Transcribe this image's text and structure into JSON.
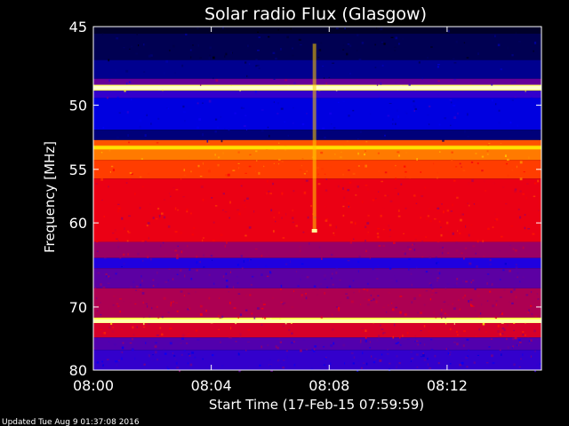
{
  "chart_data": {
    "type": "heatmap",
    "title": "Solar radio Flux (Glasgow)",
    "xlabel": "Start Time (17-Feb-15 07:59:59)",
    "ylabel": "Frequency [MHz]",
    "x_ticks": [
      "08:00",
      "08:04",
      "08:08",
      "08:12"
    ],
    "x_tick_minutes": [
      0,
      4,
      8,
      12
    ],
    "xlim_minutes": [
      0,
      15.2
    ],
    "y_ticks": [
      45,
      50,
      55,
      60,
      70,
      80
    ],
    "ylim": [
      45,
      80
    ],
    "y_scale": "reciprocal",
    "colormap": [
      "#000000",
      "#0000ff",
      "#ff0000",
      "#ffff00",
      "#ffffff"
    ],
    "bands": [
      {
        "from": 45.0,
        "to": 45.4,
        "level": 0.04
      },
      {
        "from": 45.4,
        "to": 47.0,
        "level": 0.08
      },
      {
        "from": 47.0,
        "to": 48.2,
        "level": 0.14
      },
      {
        "from": 48.2,
        "to": 48.6,
        "level": 0.35
      },
      {
        "from": 48.6,
        "to": 49.0,
        "level": 0.85
      },
      {
        "from": 49.0,
        "to": 49.5,
        "level": 0.3
      },
      {
        "from": 49.5,
        "to": 51.8,
        "level": 0.22
      },
      {
        "from": 51.8,
        "to": 52.6,
        "level": 0.12
      },
      {
        "from": 52.6,
        "to": 53.0,
        "level": 0.58
      },
      {
        "from": 53.0,
        "to": 54.2,
        "level": 0.62
      },
      {
        "from": 54.2,
        "to": 55.8,
        "level": 0.56
      },
      {
        "from": 55.8,
        "to": 62.0,
        "level": 0.48
      },
      {
        "from": 62.0,
        "to": 63.8,
        "level": 0.4
      },
      {
        "from": 63.8,
        "to": 65.0,
        "level": 0.28
      },
      {
        "from": 65.0,
        "to": 67.5,
        "level": 0.34
      },
      {
        "from": 67.5,
        "to": 71.5,
        "level": 0.42
      },
      {
        "from": 71.5,
        "to": 72.3,
        "level": 0.82
      },
      {
        "from": 72.3,
        "to": 74.5,
        "level": 0.46
      },
      {
        "from": 74.5,
        "to": 76.5,
        "level": 0.33
      },
      {
        "from": 76.5,
        "to": 80.0,
        "level": 0.3
      }
    ],
    "bright_lines": [
      {
        "freq": 48.8,
        "level": 0.95
      },
      {
        "freq": 53.2,
        "level": 0.72
      },
      {
        "freq": 72.0,
        "level": 0.92
      }
    ],
    "burst": {
      "minute": 7.5,
      "freq_range": [
        46,
        61
      ],
      "level": 0.7
    }
  },
  "footer": "Updated Tue Aug  9 01:37:08 2016"
}
